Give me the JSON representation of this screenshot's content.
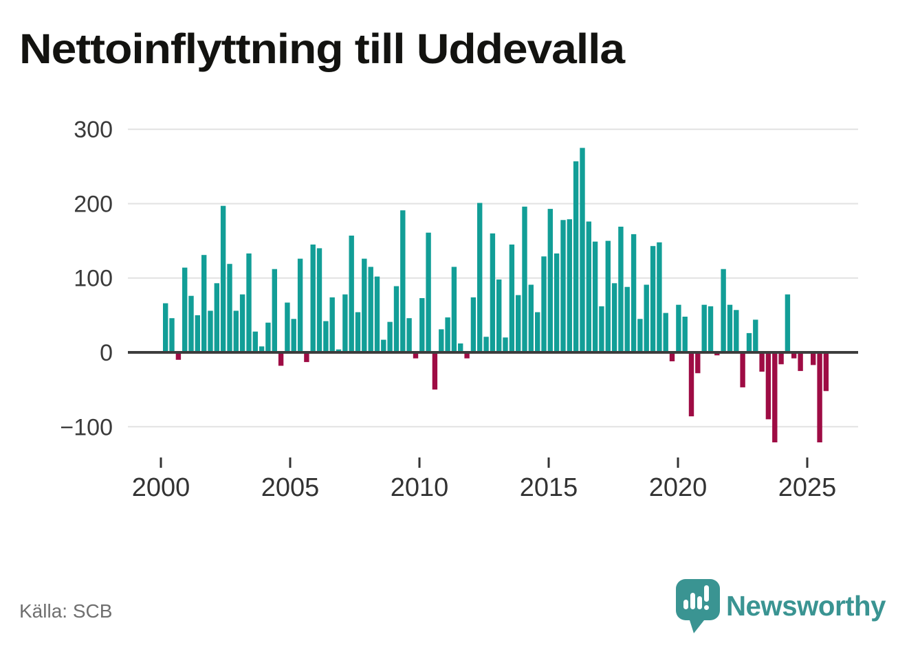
{
  "title": "Nettoinflyttning till Uddevalla",
  "source": "Källa: SCB",
  "branding": {
    "logo_text": "Newsworthy",
    "logo_icon": "speech-bubble-with-bar-chart-and-exclamation",
    "brand_color": "#3a9492"
  },
  "colors": {
    "positive_bar": "#129e97",
    "negative_bar": "#9e0c44",
    "gridline": "#e2e2e2",
    "zero_line": "#3d3d3d",
    "y_label": "#3a3a3a",
    "x_label": "#333333",
    "title_text": "#131310",
    "source_text": "#6f6f6f",
    "background": "#ffffff"
  },
  "chart_data": {
    "type": "bar",
    "title": "Nettoinflyttning till Uddevalla",
    "subtitle": "",
    "xlabel": "",
    "ylabel": "",
    "frequency": "quarterly",
    "x_start": "2000Q1",
    "x_end": "2025Q4",
    "x_tick_labels": [
      "2000",
      "2005",
      "2010",
      "2015",
      "2020",
      "2025"
    ],
    "y_ticks": [
      300,
      200,
      100,
      0,
      -100
    ],
    "y_tick_labels": [
      "300",
      "200",
      "100",
      "0",
      "−100"
    ],
    "ylim": [
      -136,
      300
    ],
    "grid": "horizontal",
    "legend": "none",
    "values": [
      66,
      46,
      -10,
      114,
      76,
      50,
      131,
      56,
      93,
      197,
      119,
      56,
      78,
      133,
      28,
      8,
      40,
      112,
      -18,
      67,
      45,
      126,
      -13,
      145,
      140,
      42,
      74,
      4,
      78,
      157,
      54,
      126,
      115,
      102,
      17,
      41,
      89,
      191,
      46,
      -8,
      73,
      161,
      -50,
      31,
      47,
      115,
      12,
      -8,
      74,
      201,
      21,
      160,
      98,
      20,
      145,
      77,
      196,
      91,
      54,
      129,
      193,
      133,
      178,
      179,
      257,
      275,
      176,
      149,
      62,
      150,
      93,
      169,
      88,
      159,
      45,
      91,
      143,
      148,
      53,
      -12,
      64,
      48,
      -86,
      -28,
      64,
      62,
      -4,
      112,
      64,
      57,
      -47,
      26,
      44,
      -26,
      -90,
      -121,
      -16,
      78,
      -8,
      -25,
      0,
      -17,
      -121,
      -52
    ]
  }
}
